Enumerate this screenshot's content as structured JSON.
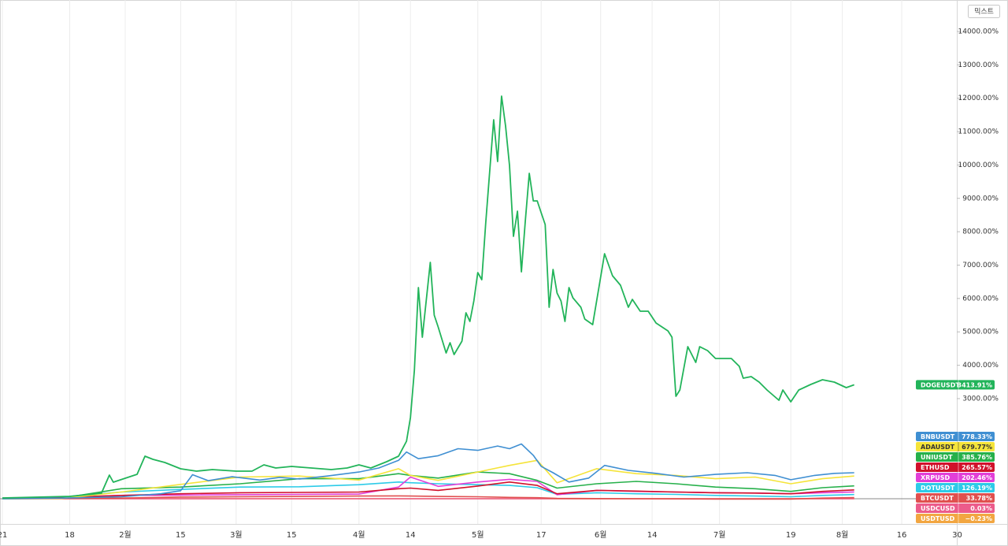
{
  "toolbar": {
    "mode": "믹스트"
  },
  "chart_data": {
    "type": "line",
    "xlim": [
      -0.6,
      240.9
    ],
    "ylim": [
      -755,
      14943
    ],
    "baseline": 0,
    "grid": true,
    "xticks": [
      {
        "value": 0,
        "label": "21"
      },
      {
        "value": 17,
        "label": "18"
      },
      {
        "value": 31,
        "label": "2월"
      },
      {
        "value": 45,
        "label": "15"
      },
      {
        "value": 59,
        "label": "3월"
      },
      {
        "value": 73,
        "label": "15"
      },
      {
        "value": 90,
        "label": "4월"
      },
      {
        "value": 103,
        "label": "14"
      },
      {
        "value": 120,
        "label": "5월"
      },
      {
        "value": 136,
        "label": "17"
      },
      {
        "value": 151,
        "label": "6월"
      },
      {
        "value": 164,
        "label": "14"
      },
      {
        "value": 181,
        "label": "7월"
      },
      {
        "value": 199,
        "label": "19"
      },
      {
        "value": 212,
        "label": "8월"
      },
      {
        "value": 227,
        "label": "16"
      },
      {
        "value": 241,
        "label": "30"
      }
    ],
    "yticks": [
      {
        "value": 3000,
        "label": "3000.00%"
      },
      {
        "value": 4000,
        "label": "4000.00%"
      },
      {
        "value": 5000,
        "label": "5000.00%"
      },
      {
        "value": 6000,
        "label": "6000.00%"
      },
      {
        "value": 7000,
        "label": "7000.00%"
      },
      {
        "value": 8000,
        "label": "8000.00%"
      },
      {
        "value": 9000,
        "label": "9000.00%"
      },
      {
        "value": 10000,
        "label": "10000.00%"
      },
      {
        "value": 11000,
        "label": "11000.00%"
      },
      {
        "value": 12000,
        "label": "12000.00%"
      },
      {
        "value": 13000,
        "label": "13000.00%"
      },
      {
        "value": 14000,
        "label": "14000.00%"
      }
    ],
    "x": [
      0,
      15,
      30,
      45,
      60,
      75,
      90,
      100,
      103,
      110,
      120,
      128,
      135,
      140,
      150,
      160,
      170,
      180,
      190,
      199,
      207,
      215
    ],
    "series": [
      {
        "name": "DOGEUSDT",
        "color": "#22b45a",
        "x": [
          0,
          17,
          25,
          27,
          28,
          31,
          34,
          36,
          38,
          41,
          45,
          49,
          53,
          59,
          63,
          66,
          69,
          73,
          78,
          83,
          87,
          90,
          93,
          97,
          100,
          102,
          103,
          104,
          105,
          106,
          108,
          109,
          110,
          112,
          113,
          114,
          116,
          117,
          118,
          119,
          120,
          121,
          122,
          124,
          125,
          126,
          127,
          128,
          129,
          130,
          131,
          132,
          133,
          134,
          135,
          136,
          137,
          138,
          139,
          140,
          141,
          142,
          143,
          144,
          146,
          147,
          149,
          152,
          154,
          156,
          158,
          159,
          161,
          163,
          165,
          168,
          169,
          170,
          171,
          173,
          175,
          176,
          178,
          180,
          184,
          186,
          187,
          189,
          191,
          193,
          196,
          197,
          199,
          201,
          204,
          207,
          210,
          213,
          215
        ],
        "values": [
          24,
          71,
          165,
          708,
          496,
          614,
          732,
          1275,
          1180,
          1086,
          897,
          826,
          873,
          826,
          826,
          1015,
          921,
          968,
          921,
          873,
          921,
          1015,
          921,
          1110,
          1275,
          1723,
          2432,
          3848,
          6327,
          4839,
          7082,
          5500,
          5146,
          4367,
          4674,
          4320,
          4721,
          5571,
          5312,
          5925,
          6775,
          6563,
          8262,
          11355,
          10104,
          12063,
          11166,
          9986,
          7861,
          8617,
          6799,
          8333,
          9750,
          8923,
          8923,
          8569,
          8215,
          5736,
          6870,
          6161,
          5925,
          5312,
          6327,
          6020,
          5736,
          5382,
          5217,
          7342,
          6681,
          6397,
          5736,
          5972,
          5618,
          5618,
          5264,
          5028,
          4839,
          3069,
          3258,
          4556,
          4084,
          4556,
          4438,
          4202,
          4202,
          3966,
          3612,
          3659,
          3494,
          3258,
          2951,
          3258,
          2904,
          3258,
          3423,
          3565,
          3494,
          3329,
          3413.91
        ],
        "value_labels": [
          null,
          null,
          null,
          null,
          null,
          null,
          null,
          null,
          null,
          null,
          null,
          null,
          null,
          null,
          null,
          null,
          null,
          null,
          null,
          null,
          null,
          null,
          null,
          null,
          null,
          null,
          null,
          null,
          null,
          null,
          null,
          null,
          null,
          null,
          null,
          null,
          null,
          null,
          null,
          null,
          null,
          null,
          null,
          null,
          null,
          null,
          null,
          null,
          null,
          null,
          null,
          null,
          null,
          null,
          null,
          null,
          null,
          null,
          null,
          null,
          null,
          null,
          null,
          null,
          null,
          null,
          null,
          null,
          null,
          null,
          null,
          null,
          null,
          null,
          null,
          null,
          null,
          null,
          null,
          null,
          null,
          null,
          null,
          null,
          null,
          null,
          null,
          null,
          null,
          null,
          null,
          null,
          null,
          null,
          null,
          null,
          null,
          null,
          "3413.91%"
        ]
      },
      {
        "name": "BNBUSDT",
        "color": "#3f8fd2",
        "x": [
          0,
          15,
          30,
          40,
          45,
          48,
          52,
          58,
          65,
          70,
          75,
          82,
          90,
          95,
          100,
          102,
          105,
          110,
          115,
          120,
          125,
          128,
          131,
          134,
          136,
          139,
          143,
          148,
          152,
          158,
          165,
          172,
          180,
          188,
          195,
          199,
          205,
          210,
          215
        ],
        "values": [
          0,
          20,
          60,
          150,
          240,
          720,
          540,
          660,
          560,
          640,
          590,
          680,
          800,
          920,
          1150,
          1400,
          1200,
          1290,
          1500,
          1450,
          1580,
          1500,
          1640,
          1300,
          970,
          780,
          500,
          620,
          1000,
          850,
          760,
          650,
          730,
          780,
          700,
          570,
          700,
          760,
          778.33
        ],
        "value_labels": [
          null,
          null,
          null,
          null,
          null,
          null,
          null,
          null,
          null,
          null,
          null,
          null,
          null,
          null,
          null,
          null,
          null,
          null,
          null,
          null,
          null,
          null,
          null,
          null,
          null,
          null,
          null,
          null,
          null,
          null,
          null,
          null,
          null,
          null,
          null,
          null,
          null,
          null,
          "778.33%"
        ]
      },
      {
        "name": "ADAUSDT",
        "color": "#f5e43a",
        "values": [
          0,
          10,
          200,
          430,
          650,
          680,
          560,
          900,
          700,
          550,
          800,
          1000,
          1150,
          480,
          900,
          750,
          700,
          600,
          650,
          450,
          600,
          679.77
        ],
        "value_labels": [
          null,
          null,
          null,
          null,
          null,
          null,
          null,
          null,
          null,
          null,
          null,
          null,
          null,
          null,
          null,
          null,
          null,
          null,
          null,
          null,
          null,
          "679.77%"
        ]
      },
      {
        "name": "UNIUSDT",
        "color": "#26b04a",
        "values": [
          0,
          20,
          300,
          350,
          450,
          600,
          600,
          750,
          700,
          620,
          800,
          750,
          550,
          320,
          450,
          520,
          450,
          350,
          300,
          220,
          330,
          385.76
        ],
        "value_labels": [
          null,
          null,
          null,
          null,
          null,
          null,
          null,
          null,
          null,
          null,
          null,
          null,
          null,
          null,
          null,
          null,
          null,
          null,
          null,
          null,
          null,
          "385.76%"
        ]
      },
      {
        "name": "ETHUSD",
        "color": "#d1112b",
        "values": [
          10,
          40,
          100,
          150,
          180,
          190,
          200,
          300,
          320,
          250,
          380,
          500,
          400,
          150,
          250,
          230,
          200,
          180,
          170,
          150,
          220,
          265.57
        ],
        "value_labels": [
          null,
          null,
          null,
          null,
          null,
          null,
          null,
          null,
          null,
          null,
          null,
          null,
          null,
          null,
          null,
          null,
          null,
          null,
          null,
          null,
          null,
          "265.57%"
        ]
      },
      {
        "name": "XRPUSD",
        "color": "#e23fd8",
        "values": [
          20,
          40,
          100,
          110,
          120,
          130,
          140,
          350,
          650,
          370,
          500,
          580,
          520,
          120,
          250,
          220,
          200,
          180,
          170,
          150,
          180,
          202.46
        ],
        "value_labels": [
          null,
          null,
          null,
          null,
          null,
          null,
          null,
          null,
          null,
          null,
          null,
          null,
          null,
          null,
          null,
          null,
          null,
          null,
          null,
          null,
          null,
          "202.46%"
        ]
      },
      {
        "name": "DOTUSDT",
        "color": "#2dcbe8",
        "values": [
          0,
          50,
          200,
          280,
          350,
          360,
          420,
          500,
          480,
          450,
          420,
          400,
          330,
          130,
          180,
          150,
          130,
          100,
          80,
          60,
          100,
          126.19
        ],
        "value_labels": [
          null,
          null,
          null,
          null,
          null,
          null,
          null,
          null,
          null,
          null,
          null,
          null,
          null,
          null,
          null,
          null,
          null,
          null,
          null,
          null,
          null,
          "126.19%"
        ]
      },
      {
        "name": "BTCUSDT",
        "color": "#e0504f",
        "values": [
          0,
          10,
          20,
          50,
          60,
          70,
          80,
          85,
          80,
          70,
          60,
          40,
          30,
          10,
          5,
          0,
          -5,
          -10,
          -10,
          -10,
          20,
          33.78
        ],
        "value_labels": [
          null,
          null,
          null,
          null,
          null,
          null,
          null,
          null,
          null,
          null,
          null,
          null,
          null,
          null,
          null,
          null,
          null,
          null,
          null,
          null,
          null,
          "33.78%"
        ]
      },
      {
        "name": "USDCUSD",
        "color": "#ec5b8b",
        "values": [
          0,
          0,
          0,
          0,
          0,
          0,
          0,
          0,
          0,
          0,
          0,
          0,
          0,
          0,
          0,
          0,
          0,
          0,
          0,
          0,
          0,
          0.03
        ],
        "value_labels": [
          null,
          null,
          null,
          null,
          null,
          null,
          null,
          null,
          null,
          null,
          null,
          null,
          null,
          null,
          null,
          null,
          null,
          null,
          null,
          null,
          null,
          "0.03%"
        ]
      },
      {
        "name": "USDTUSD",
        "color": "#f2a641",
        "values": [
          0,
          0,
          0,
          0,
          0,
          0,
          0,
          0,
          0,
          0,
          0,
          0,
          0,
          0,
          0,
          0,
          0,
          0,
          0,
          0,
          0,
          -0.23
        ],
        "value_labels": [
          null,
          null,
          null,
          null,
          null,
          null,
          null,
          null,
          null,
          null,
          null,
          null,
          null,
          null,
          null,
          null,
          null,
          null,
          null,
          null,
          null,
          "−0.23%"
        ]
      }
    ]
  }
}
